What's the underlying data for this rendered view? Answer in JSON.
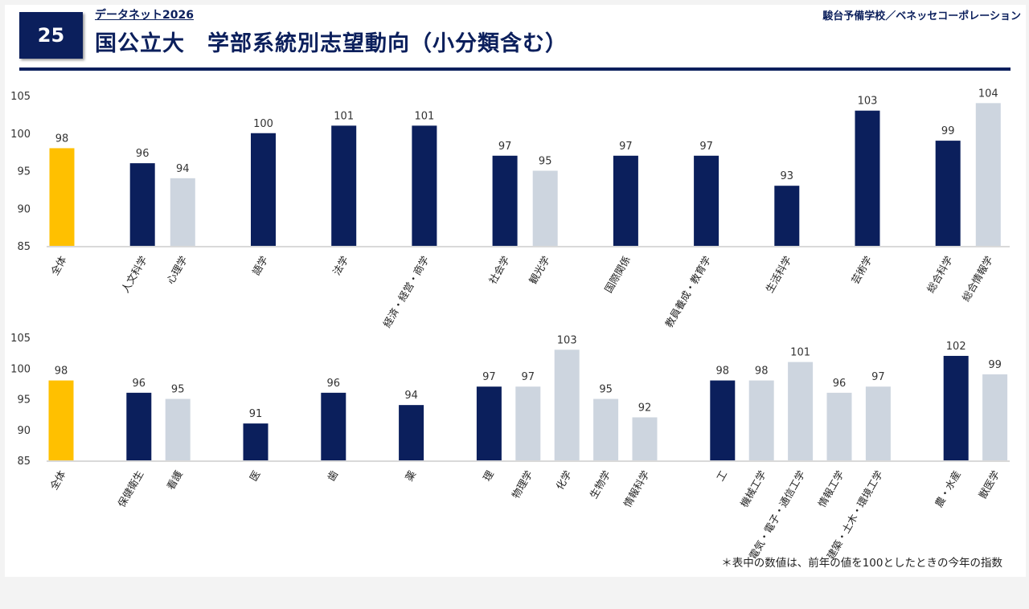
{
  "header": {
    "number": "25",
    "series": "データネット2026",
    "title": "国公立大　学部系統別志望動向（小分類含む）",
    "publisher": "駿台予備学校／ベネッセコーポレーション"
  },
  "footnote": "＊表中の数値は、前年の値を100としたときの今年の指数",
  "colors": {
    "total": "#ffc000",
    "main": "#0b1f5c",
    "sub": "#cdd5df"
  },
  "chart_data": [
    {
      "type": "bar",
      "ylim": [
        85,
        105
      ],
      "yticks": [
        85,
        90,
        95,
        100,
        105
      ],
      "grid": false,
      "groups": [
        [
          {
            "label": "全体",
            "value": 98,
            "kind": "total"
          }
        ],
        [
          {
            "label": "人文科学",
            "value": 96,
            "kind": "main"
          },
          {
            "label": "心理学",
            "value": 94,
            "kind": "sub"
          }
        ],
        [
          {
            "label": "語学",
            "value": 100,
            "kind": "main"
          }
        ],
        [
          {
            "label": "法学",
            "value": 101,
            "kind": "main"
          }
        ],
        [
          {
            "label": "経済・経営・商学",
            "value": 101,
            "kind": "main"
          }
        ],
        [
          {
            "label": "社会学",
            "value": 97,
            "kind": "main"
          },
          {
            "label": "観光学",
            "value": 95,
            "kind": "sub"
          }
        ],
        [
          {
            "label": "国際関係",
            "value": 97,
            "kind": "main"
          }
        ],
        [
          {
            "label": "教員養成・教育学",
            "value": 97,
            "kind": "main"
          }
        ],
        [
          {
            "label": "生活科学",
            "value": 93,
            "kind": "main"
          }
        ],
        [
          {
            "label": "芸術学",
            "value": 103,
            "kind": "main"
          }
        ],
        [
          {
            "label": "総合科学",
            "value": 99,
            "kind": "main"
          },
          {
            "label": "総合情報学",
            "value": 104,
            "kind": "sub"
          }
        ]
      ]
    },
    {
      "type": "bar",
      "ylim": [
        85,
        105
      ],
      "yticks": [
        85,
        90,
        95,
        100,
        105
      ],
      "grid": false,
      "groups": [
        [
          {
            "label": "全体",
            "value": 98,
            "kind": "total"
          }
        ],
        [
          {
            "label": "保健衛生",
            "value": 96,
            "kind": "main"
          },
          {
            "label": "看護",
            "value": 95,
            "kind": "sub"
          }
        ],
        [
          {
            "label": "医",
            "value": 91,
            "kind": "main"
          }
        ],
        [
          {
            "label": "歯",
            "value": 96,
            "kind": "main"
          }
        ],
        [
          {
            "label": "薬",
            "value": 94,
            "kind": "main"
          }
        ],
        [
          {
            "label": "理",
            "value": 97,
            "kind": "main"
          },
          {
            "label": "物理学",
            "value": 97,
            "kind": "sub"
          },
          {
            "label": "化学",
            "value": 103,
            "kind": "sub"
          },
          {
            "label": "生物学",
            "value": 95,
            "kind": "sub"
          },
          {
            "label": "情報科学",
            "value": 92,
            "kind": "sub"
          }
        ],
        [
          {
            "label": "工",
            "value": 98,
            "kind": "main"
          },
          {
            "label": "機械工学",
            "value": 98,
            "kind": "sub"
          },
          {
            "label": "電気・電子・通信工学",
            "value": 101,
            "kind": "sub"
          },
          {
            "label": "情報工学",
            "value": 96,
            "kind": "sub"
          },
          {
            "label": "建築・土木・環境工学",
            "value": 97,
            "kind": "sub"
          }
        ],
        [
          {
            "label": "農・水産",
            "value": 102,
            "kind": "main"
          },
          {
            "label": "獣医学",
            "value": 99,
            "kind": "sub"
          }
        ]
      ]
    }
  ]
}
